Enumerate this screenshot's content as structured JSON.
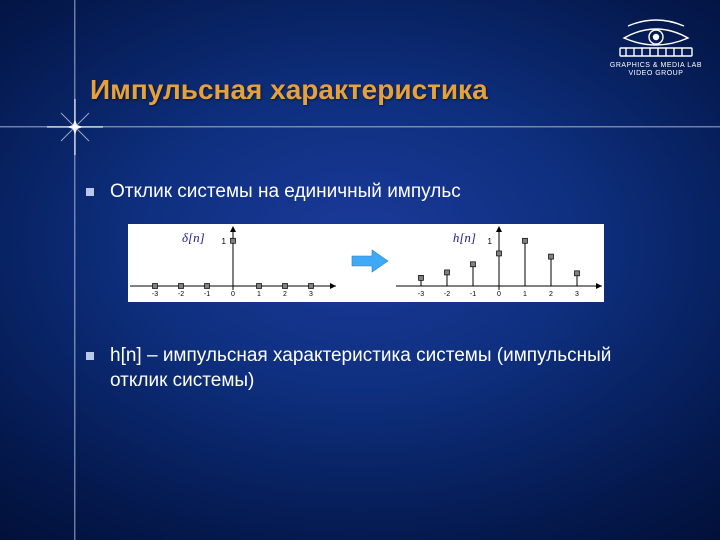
{
  "title": "Импульсная характеристика",
  "logo": {
    "line1": "GRAPHICS & MEDIA LAB",
    "line2": "VIDEO GROUP"
  },
  "bullets": {
    "b1": "Отклик системы на единичный импульс",
    "b2": "h[n] – импульсная характеристика системы (импульсный отклик системы)"
  },
  "figure": {
    "left_label": "δ[n]",
    "right_label": "h[n]",
    "background": "#ffffff",
    "axis_color": "#000000",
    "tick_label_color": "#000000",
    "marker_fill": "#808080",
    "marker_stroke": "#000000",
    "line_width": 1,
    "marker_size": 5,
    "left": {
      "type": "stem",
      "x": [
        -3,
        -2,
        -1,
        0,
        1,
        2,
        3
      ],
      "y": [
        0,
        0,
        0,
        1,
        0,
        0,
        0
      ],
      "xlim": [
        -3.5,
        3.5
      ],
      "ylim": [
        -0.15,
        1.15
      ],
      "ytick": [
        1
      ]
    },
    "right": {
      "type": "stem",
      "x": [
        -3,
        -2,
        -1,
        0,
        1,
        2,
        3
      ],
      "y": [
        0.18,
        0.3,
        0.48,
        0.72,
        1.0,
        0.65,
        0.28
      ],
      "xlim": [
        -3.5,
        3.5
      ],
      "ylim": [
        -0.15,
        1.15
      ],
      "ytick": [
        1
      ]
    },
    "arrow_color": "#3fa9f5"
  },
  "colors": {
    "title_color": "#e7a13b",
    "text_color": "#ffffff",
    "bullet_marker": "#b9c7e8",
    "bg_center": "#1a3a9a",
    "bg_edge": "#010b2c"
  },
  "fonts": {
    "title_size_pt": 28,
    "body_size_pt": 19
  }
}
